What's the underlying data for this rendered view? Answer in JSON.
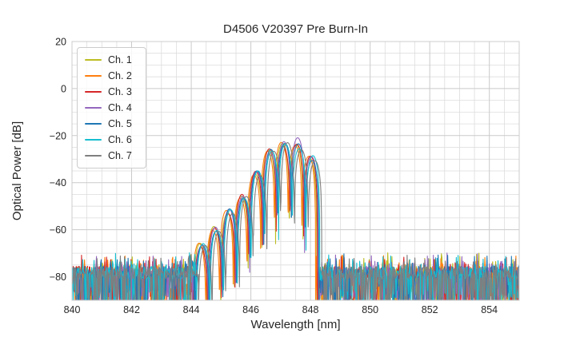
{
  "figure": {
    "background": "#ffffff"
  },
  "chart_data": {
    "type": "line",
    "title": "D4506 V20397 Pre Burn-In",
    "xlabel": "Wavelength [nm]",
    "ylabel": "Optical Power [dB]",
    "xlim": [
      840,
      855
    ],
    "ylim": [
      -90,
      20
    ],
    "xticks": {
      "values": [
        840,
        842,
        844,
        846,
        848,
        850,
        852,
        854
      ],
      "labels": [
        "840",
        "842",
        "844",
        "846",
        "848",
        "850",
        "852",
        "854"
      ]
    },
    "yticks": {
      "values": [
        20,
        0,
        -20,
        -40,
        -60,
        -80
      ],
      "labels": [
        "20",
        "0",
        "−20",
        "−40",
        "−60",
        "−80"
      ]
    },
    "grid": {
      "major": true,
      "minor": true,
      "minor_x_step_nm": 0.5,
      "minor_y_step_db": 5,
      "major_color": "#cacaca",
      "minor_color": "#dddddd",
      "spine_color": "#cccccc"
    },
    "legend": {
      "position": "upper-left"
    },
    "series": [
      {
        "name": "Ch. 1",
        "color": "#bcbd22",
        "offset_nm": -0.05
      },
      {
        "name": "Ch. 2",
        "color": "#ff7f0e",
        "offset_nm": -0.09
      },
      {
        "name": "Ch. 3",
        "color": "#d62728",
        "offset_nm": -0.03
      },
      {
        "name": "Ch. 4",
        "color": "#9467bd",
        "offset_nm": 0.0
      },
      {
        "name": "Ch. 5",
        "color": "#1f77b4",
        "offset_nm": 0.02
      },
      {
        "name": "Ch. 6",
        "color": "#17becf",
        "offset_nm": 0.05
      },
      {
        "name": "Ch. 7",
        "color": "#7f7f7f",
        "offset_nm": 0.12
      }
    ],
    "spectrum_model": {
      "description_of_trace": "Dense noise floor across band except signal region; lobed laser spectrum rises out of noise between ~844.2 and ~848.3 nm",
      "noise_floor_db": -78.3,
      "noise_band_top_db": -72,
      "noise_spike_min_db": -96,
      "signal_start_nm": 844.12,
      "signal_end_nm": 848.26,
      "lobe_spacing_nm": 0.46,
      "lobe_centers_nm": [
        844.35,
        844.81,
        845.27,
        845.73,
        846.19,
        846.65,
        847.11,
        847.57,
        848.03
      ],
      "lobe_peak_db": [
        -67,
        -59.5,
        -52,
        -45.5,
        -36,
        -26.5,
        -23.4,
        -23.9,
        -28.5
      ],
      "max_power_db": -23.4,
      "peak_wavelength_nm": 847.11
    }
  }
}
